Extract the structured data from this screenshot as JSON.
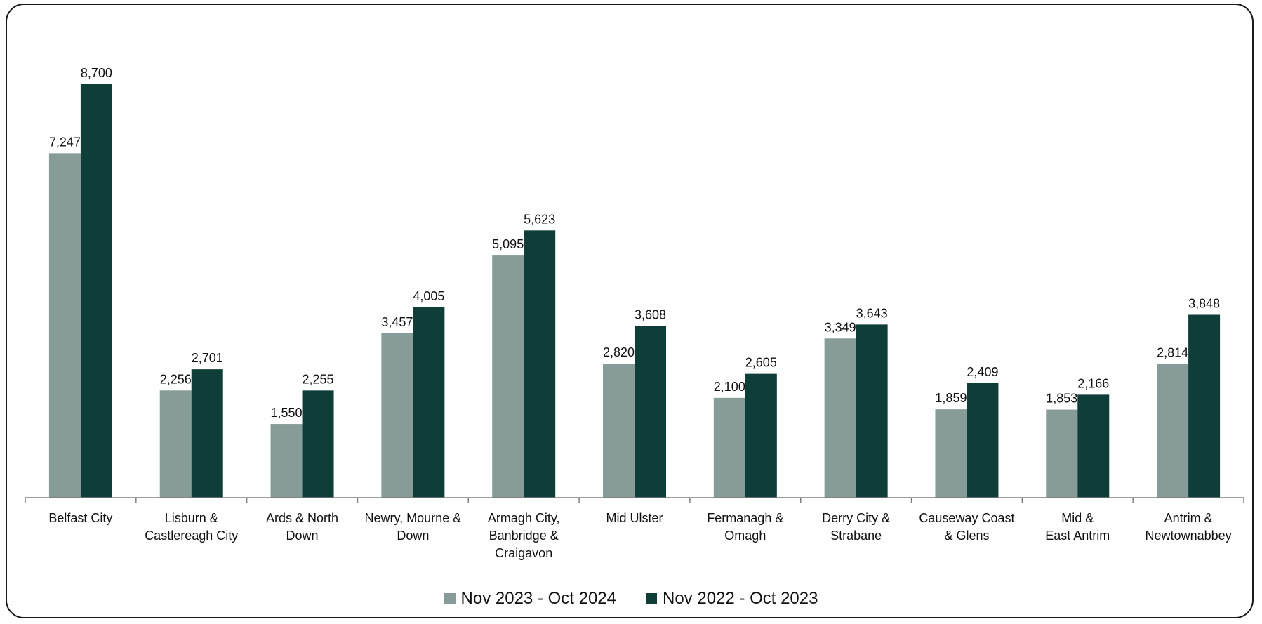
{
  "chart_data": {
    "type": "bar",
    "title": "",
    "xlabel": "",
    "ylabel": "",
    "ylim": [
      0,
      9500
    ],
    "grid": false,
    "legend_position": "bottom",
    "categories": [
      [
        "Belfast City"
      ],
      [
        "Lisburn &",
        "Castlereagh City"
      ],
      [
        "Ards & North",
        "Down"
      ],
      [
        "Newry, Mourne &",
        "Down"
      ],
      [
        "Armagh City,",
        "Banbridge &",
        "Craigavon"
      ],
      [
        "Mid Ulster"
      ],
      [
        "Fermanagh &",
        "Omagh"
      ],
      [
        "Derry City &",
        "Strabane"
      ],
      [
        "Causeway Coast",
        "& Glens"
      ],
      [
        "Mid &",
        "East Antrim"
      ],
      [
        "Antrim &",
        "Newtownabbey"
      ]
    ],
    "series": [
      {
        "name": "Nov 2023 - Oct 2024",
        "color": "#879c98",
        "values": [
          7247,
          2256,
          1550,
          3457,
          5095,
          2820,
          2100,
          3349,
          1859,
          1853,
          2814
        ],
        "labels": [
          "7,247",
          "2,256",
          "1,550",
          "3,457",
          "5,095",
          "2,820",
          "2,100",
          "3,349",
          "1,859",
          "1,853",
          "2,814"
        ]
      },
      {
        "name": "Nov 2022 - Oct 2023",
        "color": "#0f3d38",
        "values": [
          8700,
          2701,
          2255,
          4005,
          5623,
          3608,
          2605,
          3643,
          2409,
          2166,
          3848
        ],
        "labels": [
          "8,700",
          "2,701",
          "2,255",
          "4,005",
          "5,623",
          "3,608",
          "2,605",
          "3,643",
          "2,409",
          "2,166",
          "3,848"
        ]
      }
    ]
  }
}
